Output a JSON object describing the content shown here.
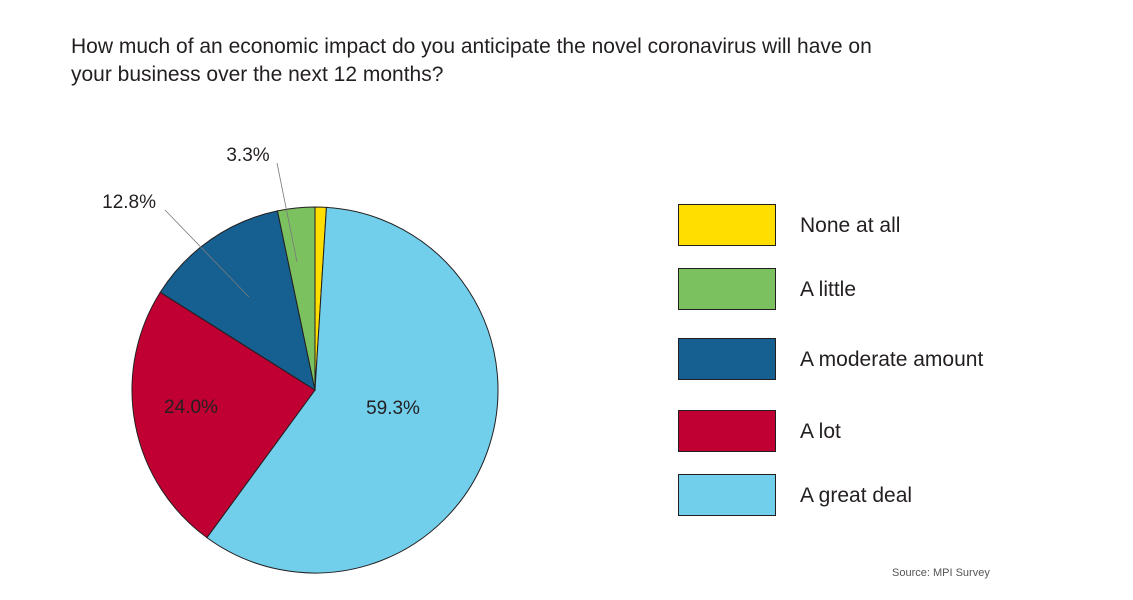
{
  "title_lines": [
    "How much of an economic impact do you anticipate the novel coronavirus will have on",
    "your business over the next 12 months?"
  ],
  "source": "Source: MPI Survey",
  "chart_data": {
    "type": "pie",
    "title": "How much of an economic impact do you anticipate the novel coronavirus will have on your business over the next 12 months?",
    "slices": [
      {
        "label": "None at all",
        "value": 1.0,
        "color": "#ffde00",
        "label_text": ""
      },
      {
        "label": "A great deal",
        "value": 59.3,
        "color": "#72cfeb",
        "label_text": "59.3%"
      },
      {
        "label": "A lot",
        "value": 24.0,
        "color": "#c00032",
        "label_text": "24.0%"
      },
      {
        "label": "A moderate amount",
        "value": 12.8,
        "color": "#156090",
        "label_text": "12.8%"
      },
      {
        "label": "A little",
        "value": 3.3,
        "color": "#7cc15f",
        "label_text": "3.3%"
      }
    ],
    "legend": [
      {
        "label": "None at all",
        "color": "#ffde00"
      },
      {
        "label": "A little",
        "color": "#7cc15f"
      },
      {
        "label": "A moderate amount",
        "color": "#156090"
      },
      {
        "label": "A lot",
        "color": "#c00032"
      },
      {
        "label": "A great deal",
        "color": "#72cfeb"
      }
    ],
    "legend_position": "right"
  }
}
